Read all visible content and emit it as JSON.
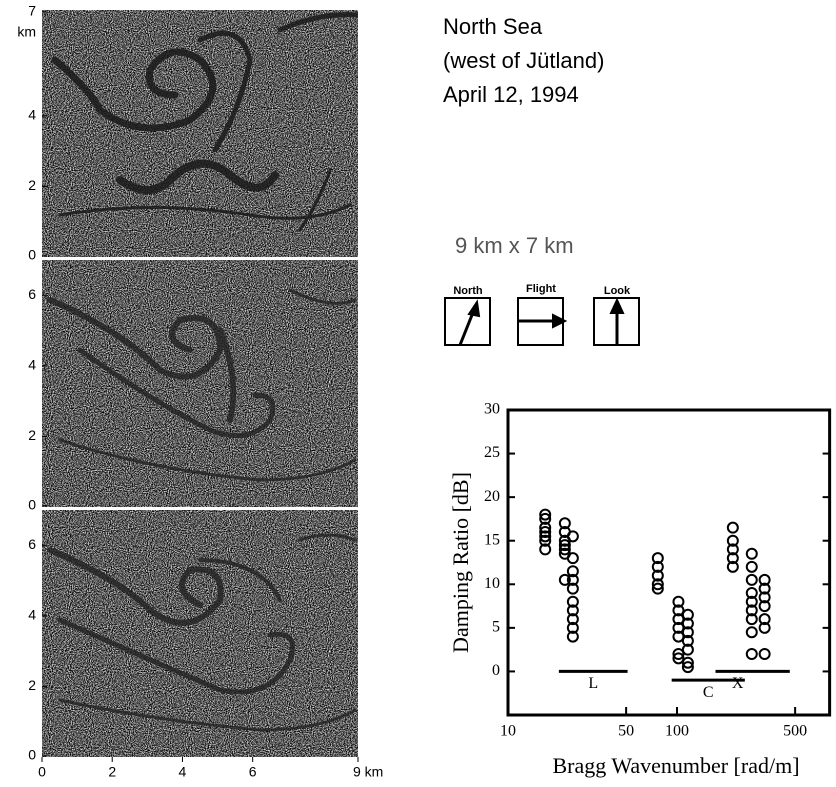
{
  "header": {
    "lines": [
      "North Sea",
      "(west of Jütland)",
      "April 12, 1994"
    ],
    "scene_size": "9 km x 7 km"
  },
  "direction_boxes": [
    {
      "label": "North"
    },
    {
      "label": "Flight"
    },
    {
      "label": "Look"
    }
  ],
  "chart_data": [
    {
      "type": "image",
      "xlim": [
        0,
        9
      ],
      "ylim": [
        0,
        7
      ],
      "y_unit": "km",
      "yticks": [
        0,
        2,
        4,
        {
          "value": 7,
          "label": "7"
        }
      ]
    },
    {
      "type": "image",
      "xlim": [
        0,
        9
      ],
      "ylim": [
        0,
        7
      ],
      "yticks": [
        0,
        2,
        4,
        6
      ]
    },
    {
      "type": "image",
      "xlim": [
        0,
        9
      ],
      "ylim": [
        0,
        7
      ],
      "yticks": [
        0,
        2,
        4,
        6
      ],
      "xticks": [
        0,
        2,
        4,
        6,
        {
          "value": 9,
          "label": "9 km"
        }
      ]
    },
    {
      "type": "scatter",
      "xlabel": "Bragg Wavenumber [rad/m]",
      "ylabel": "Damping Ratio [dB]",
      "xscale": "log",
      "xlim": [
        10,
        800
      ],
      "ylim": [
        -5,
        30
      ],
      "xticks": [
        10,
        50,
        100,
        500
      ],
      "yticks": [
        0,
        5,
        10,
        15,
        20,
        25,
        30
      ],
      "color": "#000000",
      "series": [
        {
          "x": [
            16.6,
            16.6,
            16.6,
            16.6,
            16.6,
            16.6,
            16.6,
            21.7,
            21.7,
            21.7,
            21.7,
            21.7,
            21.7,
            21.7,
            24.2,
            24.2,
            24.2,
            24.2,
            24.2,
            24.2,
            24.2,
            24.2,
            24.2,
            24.2,
            77,
            77,
            77,
            77,
            77,
            102,
            102,
            102,
            102,
            102,
            102,
            102,
            116,
            116,
            116,
            116,
            116,
            116,
            116,
            214,
            214,
            214,
            214,
            214,
            277,
            277,
            277,
            277,
            277,
            277,
            277,
            277,
            277,
            330,
            330,
            330,
            330,
            330,
            330,
            330
          ],
          "y": [
            18,
            17.5,
            16.5,
            15.5,
            15,
            14,
            16,
            17,
            16,
            15,
            14.5,
            14,
            13.5,
            10.5,
            15.5,
            13,
            11.5,
            10.5,
            9.5,
            8,
            7,
            6,
            5,
            4,
            13,
            12,
            11,
            10,
            9.5,
            8,
            7,
            6,
            5,
            4,
            2,
            1.5,
            6.5,
            5.5,
            4.5,
            3.5,
            2.5,
            1,
            0.5,
            16.5,
            15,
            14,
            13,
            12,
            13.5,
            12,
            10.5,
            9,
            8,
            7,
            6,
            4.5,
            2,
            10.5,
            9.5,
            8.5,
            7.5,
            6,
            5,
            2
          ]
        }
      ],
      "bands": [
        {
          "label": "L",
          "x": [
            20,
            51
          ],
          "y": 0
        },
        {
          "label": "C",
          "x": [
            93,
            252
          ],
          "y": -1
        },
        {
          "label": "X",
          "x": [
            169,
            465
          ],
          "y": 0
        }
      ]
    }
  ]
}
